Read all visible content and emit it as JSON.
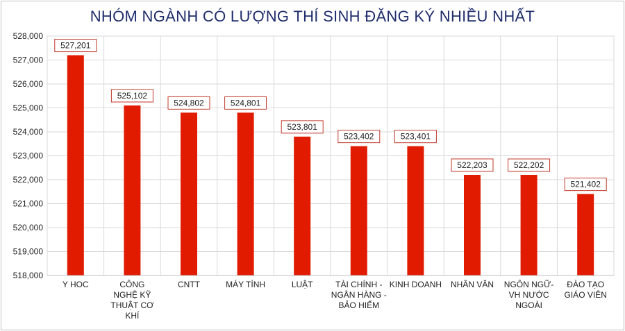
{
  "chart_data": {
    "type": "bar",
    "title": "NHÓM NGÀNH CÓ LƯỢNG THÍ SINH ĐĂNG KÝ NHIỀU NHẤT",
    "categories": [
      [
        "Y HOC"
      ],
      [
        "CÔNG",
        "NGHỆ KỸ",
        "THUẬT CƠ",
        "KHÍ"
      ],
      [
        "CNTT"
      ],
      [
        "MÁY TÍNH"
      ],
      [
        "LUẬT"
      ],
      [
        "TÀI CHÍNH -",
        "NGÂN HÀNG -",
        "BẢO HIỂM"
      ],
      [
        "KINH DOANH"
      ],
      [
        "NHÂN VĂN"
      ],
      [
        "NGÔN NGỮ-",
        "VH NƯỚC",
        "NGOÀI"
      ],
      [
        "ĐÀO TẠO",
        "GIÁO VIÊN"
      ]
    ],
    "values": [
      527201,
      525102,
      524802,
      524801,
      523801,
      523402,
      523401,
      522203,
      522202,
      521402
    ],
    "value_labels": [
      "527,201",
      "525,102",
      "524,802",
      "524,801",
      "523,801",
      "523,402",
      "523,401",
      "522,203",
      "522,202",
      "521,402"
    ],
    "ylim": [
      518000,
      528000
    ],
    "yticks": [
      518000,
      519000,
      520000,
      521000,
      522000,
      523000,
      524000,
      525000,
      526000,
      527000,
      528000
    ],
    "ytick_labels": [
      "518,000",
      "519,000",
      "520,000",
      "521,000",
      "522,000",
      "523,000",
      "524,000",
      "525,000",
      "526,000",
      "527,000",
      "528,000"
    ],
    "grid": true,
    "colors": {
      "bar": "#e01b00",
      "label_border": "#c0392b",
      "grid": "#d9d9d9",
      "title": "#1f2d6b"
    }
  }
}
